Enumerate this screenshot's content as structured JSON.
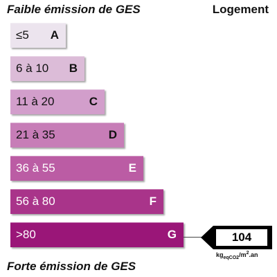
{
  "header": {
    "title": "Faible émission de GES",
    "category": "Logement"
  },
  "footer": {
    "title": "Forte émission de GES"
  },
  "classes": [
    {
      "range": "≤5",
      "letter": "A",
      "color": "#ece4ee",
      "text_color": "#111111"
    },
    {
      "range": "6 à 10",
      "letter": "B",
      "color": "#dcbcd8",
      "text_color": "#111111"
    },
    {
      "range": "11 à 20",
      "letter": "C",
      "color": "#d29ecb",
      "text_color": "#111111"
    },
    {
      "range": "21 à 35",
      "letter": "D",
      "color": "#c77db7",
      "text_color": "#111111"
    },
    {
      "range": "36 à 55",
      "letter": "E",
      "color": "#bb5ca4",
      "text_color": "#ffffff"
    },
    {
      "range": "56 à 80",
      "letter": "F",
      "color": "#a9348a",
      "text_color": "#ffffff"
    },
    {
      "range": ">80",
      "letter": "G",
      "color": "#9a1678",
      "text_color": "#ffffff"
    }
  ],
  "indicator": {
    "value": "104",
    "class": "G",
    "unit_main": "kg",
    "unit_sub": "eqCO2",
    "unit_rest": "/m",
    "unit_sup": "2",
    "unit_end": ".an"
  }
}
